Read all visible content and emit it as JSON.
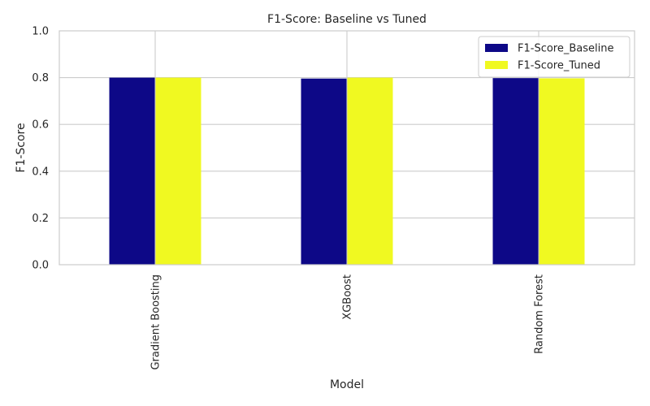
{
  "chart_data": {
    "type": "bar",
    "title": "F1-Score: Baseline vs Tuned",
    "xlabel": "Model",
    "ylabel": "F1-Score",
    "categories": [
      "Gradient Boosting",
      "XGBoost",
      "Random Forest"
    ],
    "series": [
      {
        "name": "F1-Score_Baseline",
        "color": "#0d0887",
        "values": [
          0.8,
          0.796,
          0.798
        ]
      },
      {
        "name": "F1-Score_Tuned",
        "color": "#f0f921",
        "values": [
          0.8,
          0.8,
          0.797
        ]
      }
    ],
    "ylim": [
      0,
      1
    ],
    "yticks": [
      "0.0",
      "0.2",
      "0.4",
      "0.6",
      "0.8",
      "1.0"
    ],
    "grid": true,
    "legend_position": "top-right"
  }
}
